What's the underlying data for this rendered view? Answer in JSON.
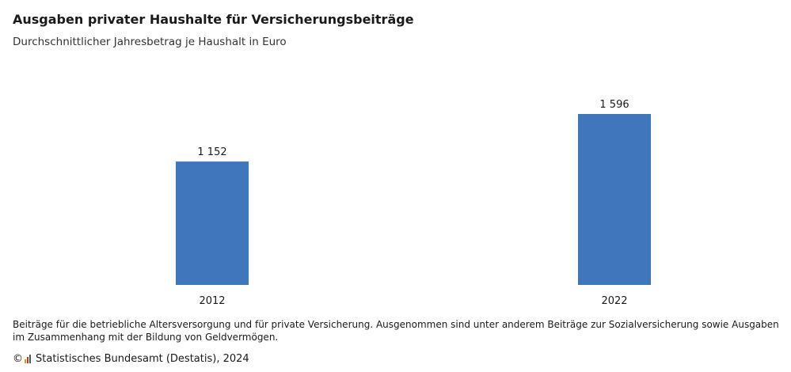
{
  "header": {
    "title": "Ausgaben privater Haushalte für Versicherungsbeiträge",
    "subtitle": "Durchschnittlicher Jahresbetrag je Haushalt in Euro"
  },
  "chart_data": {
    "type": "bar",
    "categories": [
      "2012",
      "2022"
    ],
    "values": [
      1152,
      1596
    ],
    "value_labels": [
      "1 152",
      "1 596"
    ],
    "title": "Ausgaben privater Haushalte für Versicherungsbeiträge",
    "subtitle": "Durchschnittlicher Jahresbetrag je Haushalt in Euro",
    "xlabel": "",
    "ylabel": "",
    "ylim": [
      0,
      1800
    ],
    "grid": false,
    "legend": "none",
    "bar_color": "#3F76BC"
  },
  "footer": {
    "note": "Beiträge für die betriebliche Altersversorgung und für private Versicherung. Ausgenommen sind unter anderem Beiträge zur Sozialversicherung sowie Ausgaben im Zusammenhang mit der Bildung von Geldvermögen.",
    "copyright_symbol": "©",
    "source": "Statistisches Bundesamt (Destatis), 2024",
    "logo_icon": "destatis-bars-icon",
    "logo_colors": [
      "#d4a017",
      "#c0392b",
      "#555555"
    ]
  }
}
